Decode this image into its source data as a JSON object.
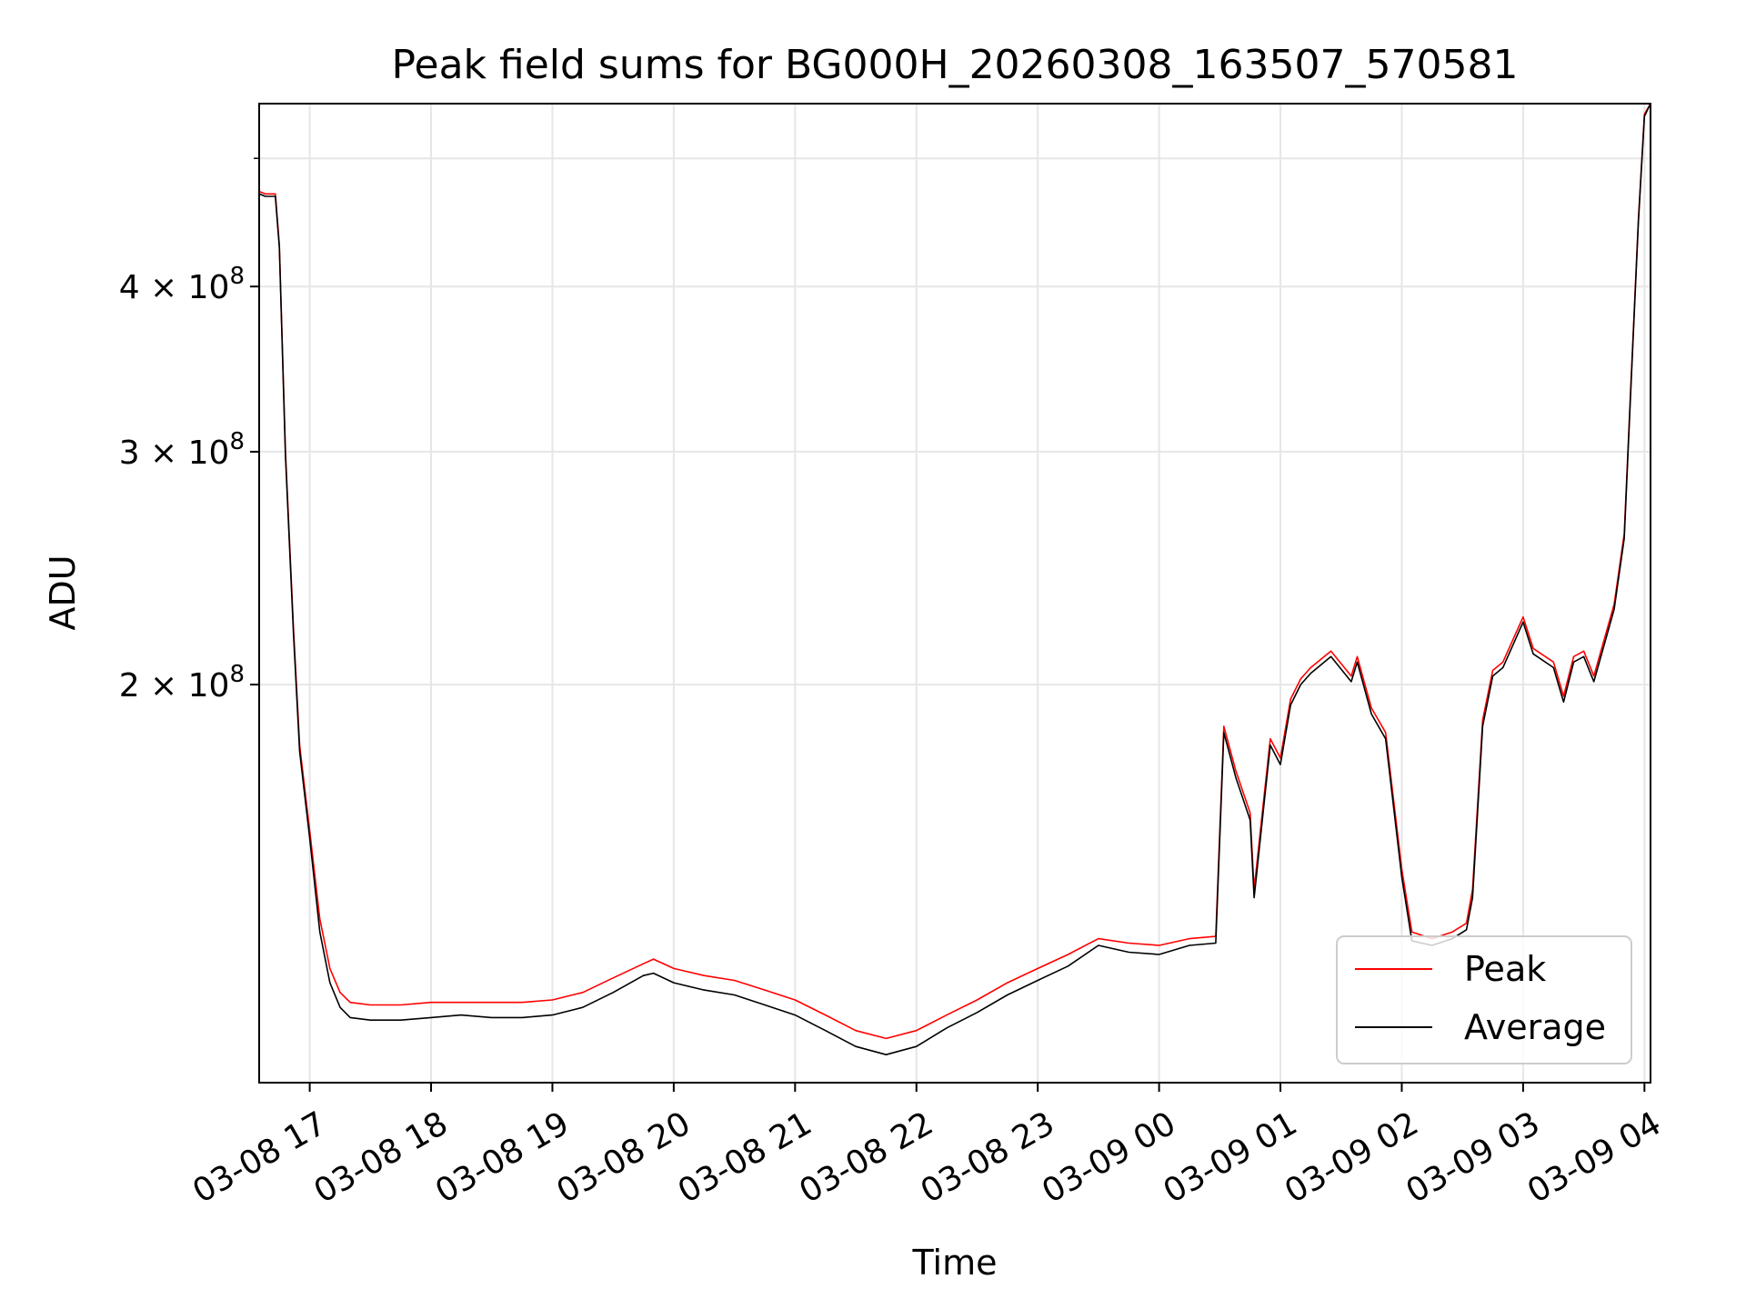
{
  "chart_data": {
    "type": "line",
    "title": "Peak field sums for BG000H_20260308_163507_570581",
    "xlabel": "Time",
    "ylabel": "ADU",
    "y_scale": "log",
    "ylim": [
      100000000,
      550000000
    ],
    "xlim": [
      "2026-03-08 16:35",
      "2026-03-09 04:03"
    ],
    "grid": true,
    "legend_position": "bottom-right",
    "x_ticks": [
      {
        "label": "03-08 17",
        "value": "2026-03-08 17:00"
      },
      {
        "label": "03-08 18",
        "value": "2026-03-08 18:00"
      },
      {
        "label": "03-08 19",
        "value": "2026-03-08 19:00"
      },
      {
        "label": "03-08 20",
        "value": "2026-03-08 20:00"
      },
      {
        "label": "03-08 21",
        "value": "2026-03-08 21:00"
      },
      {
        "label": "03-08 22",
        "value": "2026-03-08 22:00"
      },
      {
        "label": "03-08 23",
        "value": "2026-03-08 23:00"
      },
      {
        "label": "03-09 00",
        "value": "2026-03-09 00:00"
      },
      {
        "label": "03-09 01",
        "value": "2026-03-09 01:00"
      },
      {
        "label": "03-09 02",
        "value": "2026-03-09 02:00"
      },
      {
        "label": "03-09 03",
        "value": "2026-03-09 03:00"
      },
      {
        "label": "03-09 04",
        "value": "2026-03-09 04:00"
      }
    ],
    "y_ticks": [
      {
        "base": "2 × 10",
        "exp": "8",
        "value": 200000000
      },
      {
        "base": "3 × 10",
        "exp": "8",
        "value": 300000000
      },
      {
        "base": "4 × 10",
        "exp": "8",
        "value": 400000000
      }
    ],
    "y_minor_ticks": [
      500000000
    ],
    "series": [
      {
        "name": "Peak",
        "color": "#ff0000",
        "points": [
          [
            "2026-03-08 16:35",
            472000000.0
          ],
          [
            "2026-03-08 16:38",
            470000000.0
          ],
          [
            "2026-03-08 16:43",
            470000000.0
          ],
          [
            "2026-03-08 16:45",
            430000000.0
          ],
          [
            "2026-03-08 16:48",
            300000000.0
          ],
          [
            "2026-03-08 16:52",
            220000000.0
          ],
          [
            "2026-03-08 16:55",
            180000000.0
          ],
          [
            "2026-03-08 17:00",
            155000000.0
          ],
          [
            "2026-03-08 17:05",
            133000000.0
          ],
          [
            "2026-03-08 17:10",
            122000000.0
          ],
          [
            "2026-03-08 17:15",
            117000000.0
          ],
          [
            "2026-03-08 17:20",
            115000000.0
          ],
          [
            "2026-03-08 17:30",
            114500000.0
          ],
          [
            "2026-03-08 17:45",
            114500000.0
          ],
          [
            "2026-03-08 18:00",
            115000000.0
          ],
          [
            "2026-03-08 18:15",
            115000000.0
          ],
          [
            "2026-03-08 18:30",
            115000000.0
          ],
          [
            "2026-03-08 18:45",
            115000000.0
          ],
          [
            "2026-03-08 19:00",
            115500000.0
          ],
          [
            "2026-03-08 19:15",
            117000000.0
          ],
          [
            "2026-03-08 19:30",
            120000000.0
          ],
          [
            "2026-03-08 19:45",
            123000000.0
          ],
          [
            "2026-03-08 19:50",
            124000000.0
          ],
          [
            "2026-03-08 20:00",
            122000000.0
          ],
          [
            "2026-03-08 20:15",
            120500000.0
          ],
          [
            "2026-03-08 20:30",
            119500000.0
          ],
          [
            "2026-03-08 20:45",
            117500000.0
          ],
          [
            "2026-03-08 21:00",
            115500000.0
          ],
          [
            "2026-03-08 21:15",
            112500000.0
          ],
          [
            "2026-03-08 21:30",
            109500000.0
          ],
          [
            "2026-03-08 21:45",
            108000000.0
          ],
          [
            "2026-03-08 22:00",
            109500000.0
          ],
          [
            "2026-03-08 22:15",
            112500000.0
          ],
          [
            "2026-03-08 22:30",
            115500000.0
          ],
          [
            "2026-03-08 22:45",
            119000000.0
          ],
          [
            "2026-03-08 23:00",
            122000000.0
          ],
          [
            "2026-03-08 23:15",
            125000000.0
          ],
          [
            "2026-03-08 23:30",
            128500000.0
          ],
          [
            "2026-03-08 23:45",
            127500000.0
          ],
          [
            "2026-03-09 00:00",
            127000000.0
          ],
          [
            "2026-03-09 00:15",
            128500000.0
          ],
          [
            "2026-03-09 00:28",
            129000000.0
          ],
          [
            "2026-03-09 00:32",
            186000000.0
          ],
          [
            "2026-03-09 00:38",
            172000000.0
          ],
          [
            "2026-03-09 00:45",
            160000000.0
          ],
          [
            "2026-03-09 00:47",
            140000000.0
          ],
          [
            "2026-03-09 00:52",
            165000000.0
          ],
          [
            "2026-03-09 00:55",
            182000000.0
          ],
          [
            "2026-03-09 01:00",
            176000000.0
          ],
          [
            "2026-03-09 01:05",
            195000000.0
          ],
          [
            "2026-03-09 01:10",
            202000000.0
          ],
          [
            "2026-03-09 01:15",
            206000000.0
          ],
          [
            "2026-03-09 01:25",
            212000000.0
          ],
          [
            "2026-03-09 01:35",
            203000000.0
          ],
          [
            "2026-03-09 01:38",
            210000000.0
          ],
          [
            "2026-03-09 01:45",
            192000000.0
          ],
          [
            "2026-03-09 01:52",
            184000000.0
          ],
          [
            "2026-03-09 02:00",
            145000000.0
          ],
          [
            "2026-03-09 02:05",
            130000000.0
          ],
          [
            "2026-03-09 02:15",
            128500000.0
          ],
          [
            "2026-03-09 02:25",
            130000000.0
          ],
          [
            "2026-03-09 02:32",
            132000000.0
          ],
          [
            "2026-03-09 02:35",
            140000000.0
          ],
          [
            "2026-03-09 02:40",
            188000000.0
          ],
          [
            "2026-03-09 02:45",
            205000000.0
          ],
          [
            "2026-03-09 02:50",
            208000000.0
          ],
          [
            "2026-03-09 03:00",
            225000000.0
          ],
          [
            "2026-03-09 03:05",
            213000000.0
          ],
          [
            "2026-03-09 03:15",
            208000000.0
          ],
          [
            "2026-03-09 03:20",
            196000000.0
          ],
          [
            "2026-03-09 03:25",
            210000000.0
          ],
          [
            "2026-03-09 03:30",
            212000000.0
          ],
          [
            "2026-03-09 03:35",
            203000000.0
          ],
          [
            "2026-03-09 03:45",
            230000000.0
          ],
          [
            "2026-03-09 03:50",
            260000000.0
          ],
          [
            "2026-03-09 03:53",
            330000000.0
          ],
          [
            "2026-03-09 03:57",
            450000000.0
          ],
          [
            "2026-03-09 04:00",
            540000000.0
          ],
          [
            "2026-03-09 04:03",
            550000000.0
          ]
        ]
      },
      {
        "name": "Average",
        "color": "#000000",
        "points": [
          [
            "2026-03-08 16:35",
            470000000.0
          ],
          [
            "2026-03-08 16:38",
            468000000.0
          ],
          [
            "2026-03-08 16:43",
            468000000.0
          ],
          [
            "2026-03-08 16:45",
            428000000.0
          ],
          [
            "2026-03-08 16:48",
            298000000.0
          ],
          [
            "2026-03-08 16:52",
            218000000.0
          ],
          [
            "2026-03-08 16:55",
            178000000.0
          ],
          [
            "2026-03-08 17:00",
            153000000.0
          ],
          [
            "2026-03-08 17:05",
            130000000.0
          ],
          [
            "2026-03-08 17:10",
            119000000.0
          ],
          [
            "2026-03-08 17:15",
            114000000.0
          ],
          [
            "2026-03-08 17:20",
            112000000.0
          ],
          [
            "2026-03-08 17:30",
            111500000.0
          ],
          [
            "2026-03-08 17:45",
            111500000.0
          ],
          [
            "2026-03-08 18:00",
            112000000.0
          ],
          [
            "2026-03-08 18:15",
            112500000.0
          ],
          [
            "2026-03-08 18:30",
            112000000.0
          ],
          [
            "2026-03-08 18:45",
            112000000.0
          ],
          [
            "2026-03-08 19:00",
            112500000.0
          ],
          [
            "2026-03-08 19:15",
            114000000.0
          ],
          [
            "2026-03-08 19:30",
            117000000.0
          ],
          [
            "2026-03-08 19:45",
            120500000.0
          ],
          [
            "2026-03-08 19:50",
            121000000.0
          ],
          [
            "2026-03-08 20:00",
            119000000.0
          ],
          [
            "2026-03-08 20:15",
            117500000.0
          ],
          [
            "2026-03-08 20:30",
            116500000.0
          ],
          [
            "2026-03-08 20:45",
            114500000.0
          ],
          [
            "2026-03-08 21:00",
            112500000.0
          ],
          [
            "2026-03-08 21:15",
            109500000.0
          ],
          [
            "2026-03-08 21:30",
            106500000.0
          ],
          [
            "2026-03-08 21:45",
            105000000.0
          ],
          [
            "2026-03-08 22:00",
            106500000.0
          ],
          [
            "2026-03-08 22:15",
            110000000.0
          ],
          [
            "2026-03-08 22:30",
            113000000.0
          ],
          [
            "2026-03-08 22:45",
            116500000.0
          ],
          [
            "2026-03-08 23:00",
            119500000.0
          ],
          [
            "2026-03-08 23:15",
            122500000.0
          ],
          [
            "2026-03-08 23:30",
            127000000.0
          ],
          [
            "2026-03-08 23:45",
            125500000.0
          ],
          [
            "2026-03-09 00:00",
            125000000.0
          ],
          [
            "2026-03-09 00:15",
            127000000.0
          ],
          [
            "2026-03-09 00:28",
            127500000.0
          ],
          [
            "2026-03-09 00:32",
            184000000.0
          ],
          [
            "2026-03-09 00:38",
            170000000.0
          ],
          [
            "2026-03-09 00:45",
            158000000.0
          ],
          [
            "2026-03-09 00:47",
            138000000.0
          ],
          [
            "2026-03-09 00:52",
            163000000.0
          ],
          [
            "2026-03-09 00:55",
            180000000.0
          ],
          [
            "2026-03-09 01:00",
            174000000.0
          ],
          [
            "2026-03-09 01:05",
            193000000.0
          ],
          [
            "2026-03-09 01:10",
            200000000.0
          ],
          [
            "2026-03-09 01:15",
            204000000.0
          ],
          [
            "2026-03-09 01:25",
            210000000.0
          ],
          [
            "2026-03-09 01:35",
            201000000.0
          ],
          [
            "2026-03-09 01:38",
            208000000.0
          ],
          [
            "2026-03-09 01:45",
            190000000.0
          ],
          [
            "2026-03-09 01:52",
            182000000.0
          ],
          [
            "2026-03-09 02:00",
            143000000.0
          ],
          [
            "2026-03-09 02:05",
            128000000.0
          ],
          [
            "2026-03-09 02:15",
            127000000.0
          ],
          [
            "2026-03-09 02:25",
            128500000.0
          ],
          [
            "2026-03-09 02:32",
            130500000.0
          ],
          [
            "2026-03-09 02:35",
            138000000.0
          ],
          [
            "2026-03-09 02:40",
            186000000.0
          ],
          [
            "2026-03-09 02:45",
            203000000.0
          ],
          [
            "2026-03-09 02:50",
            206000000.0
          ],
          [
            "2026-03-09 03:00",
            223000000.0
          ],
          [
            "2026-03-09 03:05",
            211000000.0
          ],
          [
            "2026-03-09 03:15",
            206000000.0
          ],
          [
            "2026-03-09 03:20",
            194000000.0
          ],
          [
            "2026-03-09 03:25",
            208000000.0
          ],
          [
            "2026-03-09 03:30",
            210000000.0
          ],
          [
            "2026-03-09 03:35",
            201000000.0
          ],
          [
            "2026-03-09 03:45",
            228000000.0
          ],
          [
            "2026-03-09 03:50",
            258000000.0
          ],
          [
            "2026-03-09 03:53",
            328000000.0
          ],
          [
            "2026-03-09 03:57",
            448000000.0
          ],
          [
            "2026-03-09 04:00",
            538000000.0
          ],
          [
            "2026-03-09 04:03",
            550000000.0
          ]
        ]
      }
    ]
  }
}
